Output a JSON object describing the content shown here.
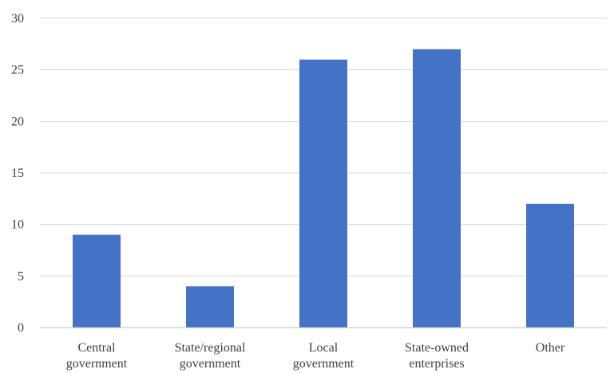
{
  "chart_data": {
    "type": "bar",
    "categories": [
      [
        "Central",
        "government"
      ],
      [
        "State/regional",
        "government"
      ],
      [
        "Local",
        "government"
      ],
      [
        "State-owned",
        "enterprises"
      ],
      [
        "Other"
      ]
    ],
    "values": [
      9,
      4,
      26,
      27,
      12
    ],
    "title": "",
    "xlabel": "",
    "ylabel": "",
    "ylim": [
      0,
      30
    ],
    "yticks": [
      0,
      5,
      10,
      15,
      20,
      25,
      30
    ],
    "grid": true,
    "legend": "none",
    "bar_color": "#4472C4"
  }
}
